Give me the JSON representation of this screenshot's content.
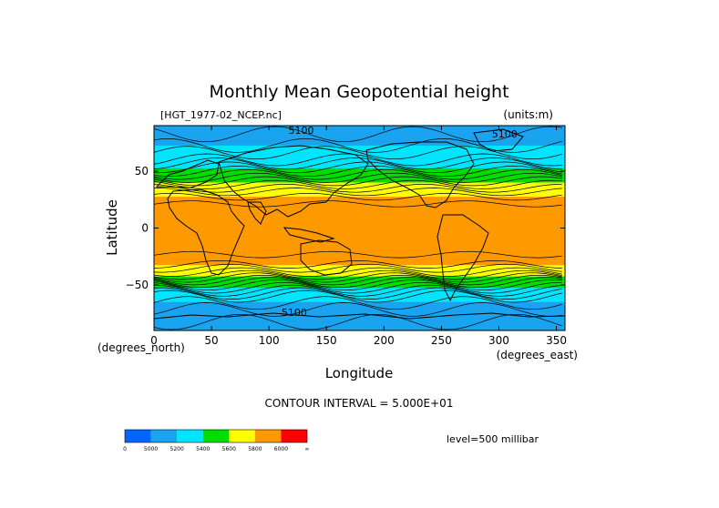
{
  "chart_data": {
    "type": "heatmap",
    "title": "Monthly Mean Geopotential height",
    "file_label": "[HGT_1977-02_NCEP.nc]",
    "units_label": "(units:m)",
    "xlabel": "Longitude",
    "ylabel": "Latitude",
    "x_units": "(degrees_east)",
    "y_units": "(degrees_north)",
    "xlim": [
      0,
      357.5
    ],
    "ylim": [
      -90,
      90
    ],
    "x_ticks": [
      0,
      50,
      100,
      150,
      200,
      250,
      300,
      350
    ],
    "y_ticks": [
      -50,
      0,
      50
    ],
    "contour_interval_text": "CONTOUR INTERVAL = 5.000E+01",
    "level_text": "level=500 millibar",
    "contour_labels": [
      {
        "text": "5100",
        "lon": 128,
        "lat": 86
      },
      {
        "text": "5100",
        "lon": 305,
        "lat": 83
      },
      {
        "text": "5100",
        "lon": 122,
        "lat": -74
      }
    ],
    "color_levels": [
      {
        "min": 0,
        "max": 5000,
        "color": "#0066ff"
      },
      {
        "min": 5000,
        "max": 5200,
        "color": "#1aa3ee"
      },
      {
        "min": 5200,
        "max": 5400,
        "color": "#00e5ff"
      },
      {
        "min": 5400,
        "max": 5600,
        "color": "#00dd00"
      },
      {
        "min": 5600,
        "max": 5800,
        "color": "#ffff00"
      },
      {
        "min": 5800,
        "max": 6000,
        "color": "#ff9900"
      },
      {
        "min": 6000,
        "max": 99999,
        "color": "#ff0000"
      }
    ],
    "colorbar_labels": [
      "0",
      "5000",
      "5200",
      "5400",
      "5600",
      "5800",
      "6000",
      "∞"
    ],
    "zonal_profile": [
      {
        "lat": 90,
        "value": 5120
      },
      {
        "lat": 75,
        "value": 5180
      },
      {
        "lat": 60,
        "value": 5300
      },
      {
        "lat": 50,
        "value": 5450
      },
      {
        "lat": 40,
        "value": 5620
      },
      {
        "lat": 30,
        "value": 5780
      },
      {
        "lat": 20,
        "value": 5860
      },
      {
        "lat": 0,
        "value": 5860
      },
      {
        "lat": -20,
        "value": 5860
      },
      {
        "lat": -30,
        "value": 5830
      },
      {
        "lat": -40,
        "value": 5680
      },
      {
        "lat": -50,
        "value": 5450
      },
      {
        "lat": -60,
        "value": 5250
      },
      {
        "lat": -75,
        "value": 5120
      },
      {
        "lat": -90,
        "value": 5080
      }
    ]
  }
}
